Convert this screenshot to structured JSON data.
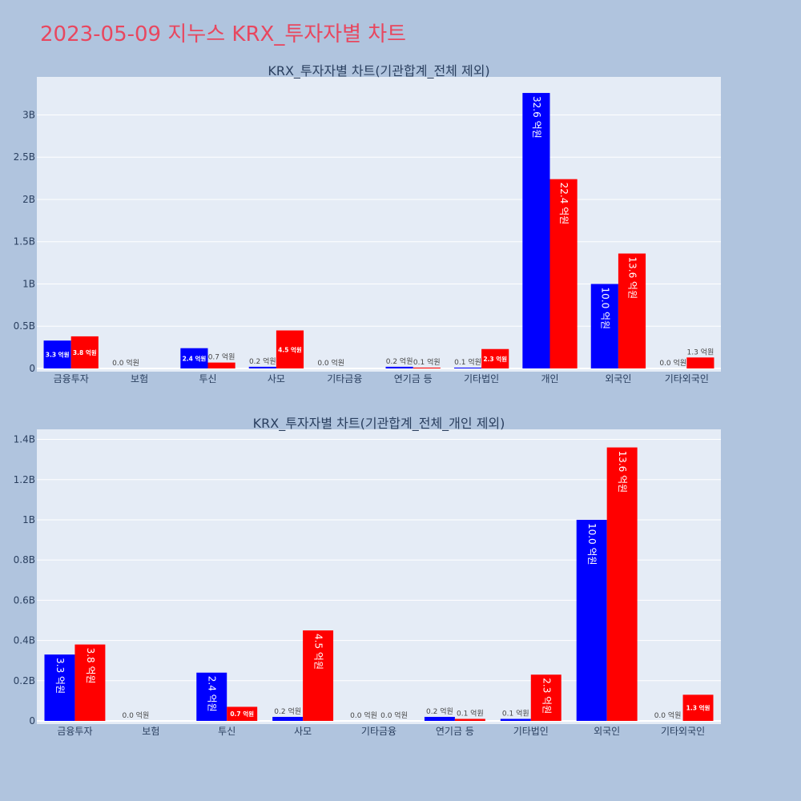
{
  "page_title": "2023-05-09 지누스 KRX_투자자별 차트",
  "colors": {
    "page_bg": "#b0c4de",
    "plot_bg": "#e5ecf6",
    "title": "#e8475f",
    "buy": "#0000ff",
    "sell": "#ff0000"
  },
  "chart_data": [
    {
      "type": "bar",
      "title": "KRX_투자자별 차트(기관합계_전체 제외)",
      "categories": [
        "금융투자",
        "보험",
        "투신",
        "사모",
        "기타금융",
        "연기금 등",
        "기타법인",
        "개인",
        "외국인",
        "기타외국인"
      ],
      "ylim": [
        0,
        3450000000
      ],
      "yticks": [
        0,
        500000000,
        1000000000,
        1500000000,
        2000000000,
        2500000000,
        3000000000
      ],
      "yticklabels": [
        "0",
        "0.5B",
        "1B",
        "1.5B",
        "2B",
        "2.5B",
        "3B"
      ],
      "grid": true,
      "series": [
        {
          "color": "#0000ff",
          "values": [
            330000000,
            0,
            240000000,
            20000000,
            0,
            20000000,
            10000000,
            3260000000,
            1000000000,
            0
          ],
          "labels": [
            "3.3 억원",
            "0.0 억원",
            "2.4 억원",
            "0.2 억원",
            "0.0 억원",
            "0.2 억원",
            "0.1 억원",
            "32.6 억원",
            "10.0 억원",
            "0.0 억원"
          ]
        },
        {
          "color": "#ff0000",
          "values": [
            380000000,
            0,
            70000000,
            450000000,
            0,
            10000000,
            230000000,
            2240000000,
            1360000000,
            130000000
          ],
          "labels": [
            "3.8 억원",
            "",
            "0.7 억원",
            "4.5 억원",
            "",
            "0.1 억원",
            "2.3 억원",
            "22.4 억원",
            "13.6 억원",
            "1.3 억원"
          ]
        }
      ]
    },
    {
      "type": "bar",
      "title": "KRX_투자자별 차트(기관합계_전체_개인 제외)",
      "categories": [
        "금융투자",
        "보험",
        "투신",
        "사모",
        "기타금융",
        "연기금 등",
        "기타법인",
        "외국인",
        "기타외국인"
      ],
      "ylim": [
        0,
        1450000000
      ],
      "yticks": [
        0,
        200000000,
        400000000,
        600000000,
        800000000,
        1000000000,
        1200000000,
        1400000000
      ],
      "yticklabels": [
        "0",
        "0.2B",
        "0.4B",
        "0.6B",
        "0.8B",
        "1B",
        "1.2B",
        "1.4B"
      ],
      "grid": true,
      "series": [
        {
          "color": "#0000ff",
          "values": [
            330000000,
            0,
            240000000,
            20000000,
            0,
            20000000,
            10000000,
            1000000000,
            0
          ],
          "labels": [
            "3.3 억원",
            "0.0 억원",
            "2.4 억원",
            "0.2 억원",
            "0.0 억원",
            "0.2 억원",
            "0.1 억원",
            "10.0 억원",
            "0.0 억원"
          ]
        },
        {
          "color": "#ff0000",
          "values": [
            380000000,
            0,
            70000000,
            450000000,
            0,
            10000000,
            230000000,
            1360000000,
            130000000
          ],
          "labels": [
            "3.8 억원",
            "",
            "0.7 억원",
            "4.5 억원",
            "0.0 억원",
            "0.1 억원",
            "2.3 억원",
            "13.6 억원",
            "1.3 억원"
          ]
        }
      ]
    }
  ]
}
